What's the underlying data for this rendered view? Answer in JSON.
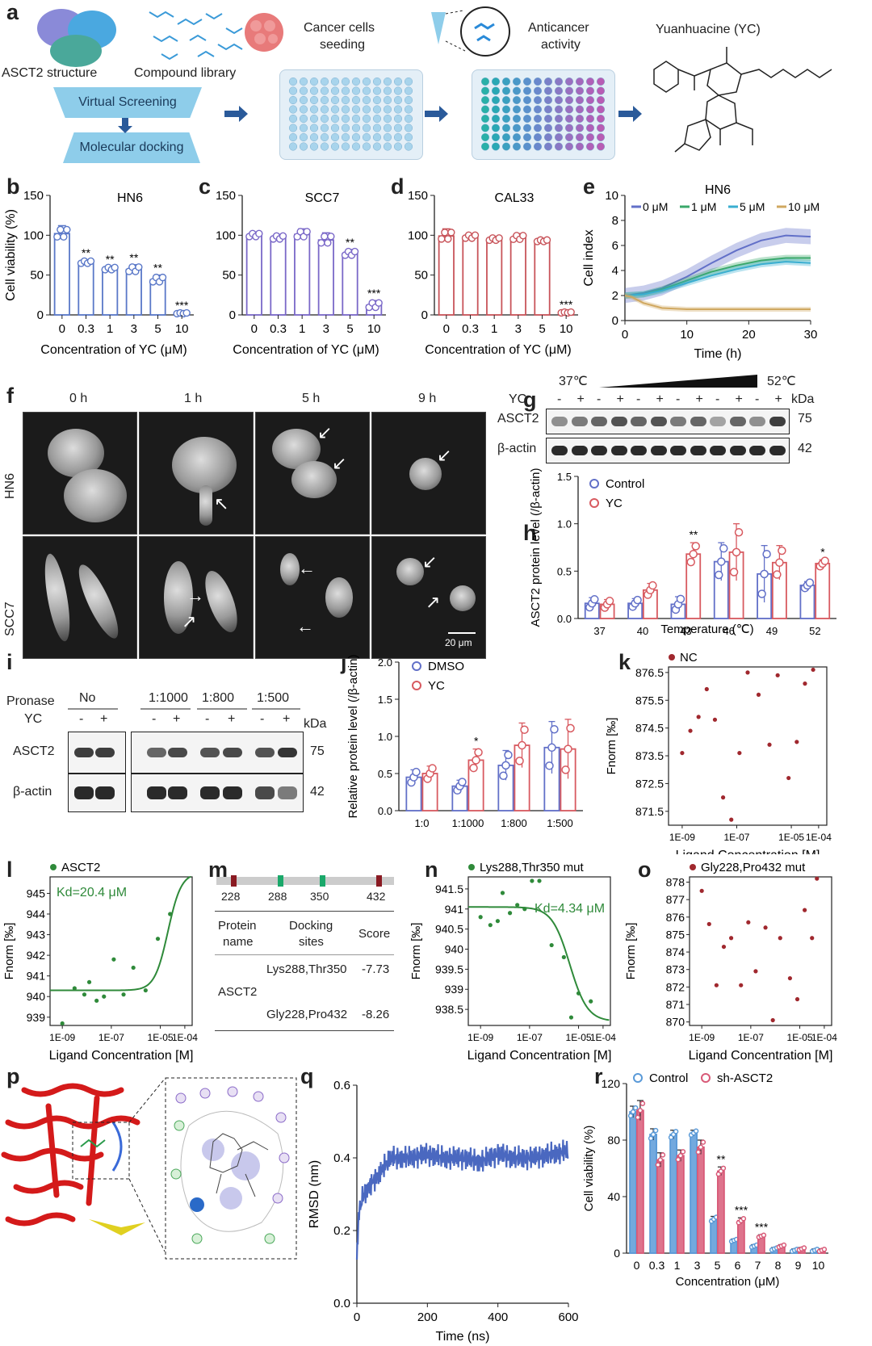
{
  "panels": {
    "a": "a",
    "b": "b",
    "c": "c",
    "d": "d",
    "e": "e",
    "f": "f",
    "g": "g",
    "h": "h",
    "i": "i",
    "j": "j",
    "k": "k",
    "l": "l",
    "m": "m",
    "n": "n",
    "o": "o",
    "p": "p",
    "q": "q",
    "r": "r"
  },
  "panel_a": {
    "asct2_structure": "ASCT2 structure",
    "compound_library": "Compound library",
    "virtual_screening": "Virtual Screening",
    "molecular_docking": "Molecular docking",
    "cancer_cells_seeding_1": "Cancer cells",
    "cancer_cells_seeding_2": "seeding",
    "anticancer_1": "Anticancer",
    "anticancer_2": "activity",
    "yc_title": "Yuanhuacine (YC)"
  },
  "panel_f": {
    "times": [
      "0 h",
      "1 h",
      "5 h",
      "9 h"
    ],
    "rows": [
      "HN6",
      "SCC7"
    ],
    "scale": "20 μm"
  },
  "panel_g": {
    "temp_low": "37℃",
    "temp_high": "52℃",
    "yc": "YC",
    "kda": "kDa",
    "asct2": "ASCT2",
    "actin": "β-actin",
    "kda_asct2": "75",
    "kda_actin": "42",
    "signs": [
      "-",
      "+",
      "-",
      "+",
      "-",
      "+",
      "-",
      "+",
      "-",
      "+",
      "-",
      "+"
    ]
  },
  "panel_i": {
    "pronase": "Pronase",
    "yc": "YC",
    "groups": [
      "No",
      "1:1000",
      "1:800",
      "1:500"
    ],
    "signs": [
      "-",
      "+",
      "-",
      "+",
      "-",
      "+",
      "-",
      "+"
    ],
    "asct2": "ASCT2",
    "actin": "β-actin",
    "kda": "kDa",
    "kda_asct2": "75",
    "kda_actin": "42"
  },
  "panel_m": {
    "sites": [
      "228",
      "288",
      "350",
      "432"
    ],
    "h_protein": "Protein",
    "h_name": "name",
    "h_docking": "Docking",
    "h_sites": "sites",
    "h_score": "Score",
    "protein": "ASCT2",
    "row1_sites": "Lys288,Thr350",
    "row1_score": "-7.73",
    "row2_sites": "Gly228,Pro432",
    "row2_score": "-8.26"
  },
  "chart_data": [
    {
      "id": "b",
      "type": "bar",
      "title": "HN6",
      "categories": [
        "0",
        "0.3",
        "1",
        "3",
        "5",
        "10"
      ],
      "values": [
        102,
        66,
        58,
        57,
        44,
        2
      ],
      "errors": [
        10,
        3,
        3,
        6,
        6,
        1
      ],
      "significance": [
        "",
        "**",
        "**",
        "**",
        "**",
        "***"
      ],
      "xlabel": "Concentration of YC (μM)",
      "ylabel": "Cell viability (%)",
      "ylim": [
        0,
        150
      ],
      "yticks": [
        0,
        50,
        100,
        150
      ],
      "color": "#5a78c8"
    },
    {
      "id": "c",
      "type": "bar",
      "title": "SCC7",
      "categories": [
        "0",
        "0.3",
        "1",
        "3",
        "5",
        "10"
      ],
      "values": [
        100,
        97,
        101,
        94,
        77,
        12
      ],
      "errors": [
        4,
        4,
        7,
        9,
        5,
        6
      ],
      "significance": [
        "",
        "",
        "",
        "",
        "**",
        "***"
      ],
      "xlabel": "Concentration of YC (μM)",
      "ylabel": "",
      "ylim": [
        0,
        150
      ],
      "yticks": [
        0,
        50,
        100,
        150
      ],
      "color": "#7a68c8"
    },
    {
      "id": "d",
      "type": "bar",
      "title": "CAL33",
      "categories": [
        "0",
        "0.3",
        "1",
        "3",
        "5",
        "10"
      ],
      "values": [
        99,
        98,
        95,
        97,
        93,
        3
      ],
      "errors": [
        9,
        4,
        3,
        5,
        2,
        1
      ],
      "significance": [
        "",
        "",
        "",
        "",
        "",
        "***"
      ],
      "xlabel": "Concentration of YC (μM)",
      "ylabel": "",
      "ylim": [
        0,
        150
      ],
      "yticks": [
        0,
        50,
        100,
        150
      ],
      "color": "#c8545a"
    },
    {
      "id": "e",
      "type": "line",
      "title": "HN6",
      "xlabel": "Time (h)",
      "ylabel": "Cell index",
      "xlim": [
        0,
        30
      ],
      "ylim": [
        0,
        10
      ],
      "xticks": [
        0,
        10,
        20,
        30
      ],
      "yticks": [
        0,
        2,
        4,
        6,
        8,
        10
      ],
      "series": [
        {
          "name": "0 μM",
          "color": "#6270c8",
          "x": [
            0,
            3,
            6,
            10,
            14,
            18,
            22,
            26,
            30
          ],
          "values": [
            2,
            2.2,
            2.6,
            3.5,
            4.6,
            5.6,
            6.4,
            6.8,
            6.7
          ],
          "band": 0.6
        },
        {
          "name": "1 μM",
          "color": "#3aa86a",
          "x": [
            0,
            3,
            6,
            10,
            14,
            18,
            22,
            26,
            30
          ],
          "values": [
            2,
            2.1,
            2.5,
            3.2,
            3.9,
            4.4,
            4.8,
            5.0,
            5.0
          ],
          "band": 0.25
        },
        {
          "name": "5 μM",
          "color": "#3aaed0",
          "x": [
            0,
            3,
            6,
            10,
            14,
            18,
            22,
            26,
            30
          ],
          "values": [
            2,
            2.1,
            2.4,
            3.0,
            3.6,
            4.1,
            4.5,
            4.7,
            4.6
          ],
          "band": 0.25
        },
        {
          "name": "10 μM",
          "color": "#d0a860",
          "x": [
            0,
            1,
            3,
            6,
            10,
            14,
            18,
            22,
            26,
            30
          ],
          "values": [
            2,
            1.9,
            1.4,
            1.0,
            0.9,
            0.9,
            0.9,
            0.9,
            0.9,
            0.9
          ],
          "band": 0.2
        }
      ]
    },
    {
      "id": "h",
      "type": "bar",
      "xlabel": "Temperature (℃)",
      "ylabel": "ASCT2 protein level (/β-actin)",
      "categories": [
        "37",
        "40",
        "43",
        "46",
        "49",
        "52"
      ],
      "ylim": [
        0,
        1.5
      ],
      "yticks": [
        0.0,
        0.5,
        1.0,
        1.5
      ],
      "series": [
        {
          "name": "Control",
          "color": "#6270c8",
          "values": [
            0.16,
            0.16,
            0.15,
            0.6,
            0.47,
            0.35
          ],
          "errors": [
            0.06,
            0.05,
            0.08,
            0.2,
            0.3,
            0.04
          ]
        },
        {
          "name": "YC",
          "color": "#d85a60",
          "values": [
            0.15,
            0.3,
            0.68,
            0.7,
            0.59,
            0.58
          ],
          "errors": [
            0.05,
            0.07,
            0.12,
            0.3,
            0.18,
            0.04
          ]
        }
      ],
      "significance": [
        "",
        "",
        "**",
        "",
        "",
        "*"
      ]
    },
    {
      "id": "j",
      "type": "bar",
      "xlabel": "",
      "ylabel": "Relative protein level (/β-actin)",
      "categories": [
        "1:0",
        "1:1000",
        "1:800",
        "1:500"
      ],
      "ylim": [
        0,
        2.0
      ],
      "yticks": [
        0.0,
        0.5,
        1.0,
        1.5,
        2.0
      ],
      "series": [
        {
          "name": "DMSO",
          "color": "#6270c8",
          "values": [
            0.45,
            0.33,
            0.61,
            0.85
          ],
          "errors": [
            0.1,
            0.08,
            0.2,
            0.35
          ]
        },
        {
          "name": "YC",
          "color": "#d85a60",
          "values": [
            0.5,
            0.68,
            0.88,
            0.83
          ],
          "errors": [
            0.1,
            0.15,
            0.3,
            0.4
          ]
        }
      ],
      "significance": [
        "",
        "*",
        "",
        ""
      ]
    },
    {
      "id": "k",
      "type": "scatter",
      "legend": "NC",
      "xlabel": "Ligand Concentration [M]",
      "ylabel": "Fnorm [‰]",
      "xlim": [
        -9.5,
        -3.7
      ],
      "ylim": [
        871,
        876.7
      ],
      "yticks": [
        871.5,
        872.5,
        873.5,
        874.5,
        875.5,
        876.5
      ],
      "xticks": [
        "1E-09",
        "1E-07",
        "1E-05",
        "1E-04"
      ],
      "xtick_vals": [
        -9,
        -7,
        -5,
        -4
      ],
      "color": "#a0282e",
      "points": [
        [
          -9,
          873.6
        ],
        [
          -8.7,
          874.4
        ],
        [
          -8.4,
          874.9
        ],
        [
          -8.1,
          875.9
        ],
        [
          -7.8,
          874.8
        ],
        [
          -7.5,
          872
        ],
        [
          -7.2,
          871.2
        ],
        [
          -6.9,
          873.6
        ],
        [
          -6.6,
          876.5
        ],
        [
          -6.2,
          875.7
        ],
        [
          -5.8,
          873.9
        ],
        [
          -5.5,
          876.4
        ],
        [
          -5.1,
          872.7
        ],
        [
          -4.8,
          874
        ],
        [
          -4.5,
          876.1
        ],
        [
          -4.2,
          876.6
        ]
      ]
    },
    {
      "id": "l",
      "type": "scatter",
      "legend": "ASCT2",
      "kd": "Kd=20.4 μM",
      "xlabel": "Ligand Concentration [M]",
      "ylabel": "Fnorm [‰]",
      "xlim": [
        -9.5,
        -3.7
      ],
      "ylim": [
        938.6,
        945.8
      ],
      "yticks": [
        939,
        940,
        941,
        942,
        943,
        944,
        945
      ],
      "xticks": [
        "1E-09",
        "1E-07",
        "1E-05",
        "1E-04"
      ],
      "xtick_vals": [
        -9,
        -7,
        -5,
        -4
      ],
      "color": "#2f8a3a",
      "points": [
        [
          -9,
          938.7
        ],
        [
          -8.5,
          940.4
        ],
        [
          -8.1,
          940.1
        ],
        [
          -7.9,
          940.7
        ],
        [
          -7.6,
          939.8
        ],
        [
          -7.3,
          940
        ],
        [
          -6.9,
          941.8
        ],
        [
          -6.5,
          940.1
        ],
        [
          -6.1,
          941.4
        ],
        [
          -5.6,
          940.3
        ],
        [
          -5.1,
          942.8
        ],
        [
          -4.6,
          944
        ]
      ],
      "fit": {
        "bottom": 940.3,
        "top": 946.0,
        "logkd": -4.69,
        "hill": 1.6
      }
    },
    {
      "id": "n",
      "type": "scatter",
      "legend": "Lys288,Thr350 mut",
      "kd": "Kd=4.34 μM",
      "xlabel": "Ligand Concentration [M]",
      "ylabel": "Fnorm [‰]",
      "xlim": [
        -9.5,
        -3.7
      ],
      "ylim": [
        938.1,
        941.8
      ],
      "yticks": [
        938.5,
        939.0,
        939.5,
        940.0,
        940.5,
        941.0,
        941.5
      ],
      "xticks": [
        "1E-09",
        "1E-07",
        "1E-05",
        "1E-04"
      ],
      "xtick_vals": [
        -9,
        -7,
        -5,
        -4
      ],
      "color": "#2f8a3a",
      "points": [
        [
          -9,
          940.8
        ],
        [
          -8.6,
          940.6
        ],
        [
          -8.3,
          940.7
        ],
        [
          -8.1,
          941.4
        ],
        [
          -7.8,
          940.9
        ],
        [
          -7.5,
          941.1
        ],
        [
          -7.2,
          941.0
        ],
        [
          -6.9,
          941.7
        ],
        [
          -6.6,
          941.7
        ],
        [
          -6.1,
          940.1
        ],
        [
          -5.6,
          939.8
        ],
        [
          -5.3,
          938.3
        ],
        [
          -5.0,
          938.9
        ],
        [
          -4.5,
          938.7
        ]
      ],
      "fit": {
        "bottom": 938.2,
        "top": 941.05,
        "logkd": -5.36,
        "hill": -1.2
      }
    },
    {
      "id": "o",
      "type": "scatter",
      "legend": "Gly228,Pro432 mut",
      "xlabel": "Ligand Concentration [M]",
      "ylabel": "Fnorm [‰]",
      "xlim": [
        -9.5,
        -3.7
      ],
      "ylim": [
        869.8,
        878.3
      ],
      "yticks": [
        870,
        871,
        872,
        873,
        874,
        875,
        876,
        877,
        878
      ],
      "xticks": [
        "1E-09",
        "1E-07",
        "1E-05",
        "1E-04"
      ],
      "xtick_vals": [
        -9,
        -7,
        -5,
        -4
      ],
      "color": "#a0282e",
      "points": [
        [
          -9,
          877.5
        ],
        [
          -8.7,
          875.6
        ],
        [
          -8.4,
          872.1
        ],
        [
          -8.1,
          874.3
        ],
        [
          -7.8,
          874.8
        ],
        [
          -7.4,
          872.1
        ],
        [
          -7.1,
          875.7
        ],
        [
          -6.8,
          872.9
        ],
        [
          -6.4,
          875.4
        ],
        [
          -6.1,
          870.1
        ],
        [
          -5.8,
          874.8
        ],
        [
          -5.4,
          872.5
        ],
        [
          -5.1,
          871.3
        ],
        [
          -4.8,
          876.4
        ],
        [
          -4.5,
          874.8
        ],
        [
          -4.3,
          878.2
        ]
      ]
    },
    {
      "id": "q",
      "type": "line",
      "xlabel": "Time (ns)",
      "ylabel": "RMSD (nm)",
      "xlim": [
        0,
        600
      ],
      "ylim": [
        0,
        0.6
      ],
      "xticks": [
        0,
        200,
        400,
        600
      ],
      "yticks": [
        0.0,
        0.2,
        0.4,
        0.6
      ],
      "color": "#4a68c0",
      "x": [
        0,
        5,
        10,
        20,
        40,
        60,
        80,
        100,
        150,
        200,
        250,
        300,
        350,
        400,
        450,
        500,
        550,
        600
      ],
      "values": [
        0.12,
        0.22,
        0.27,
        0.3,
        0.33,
        0.35,
        0.38,
        0.4,
        0.4,
        0.41,
        0.4,
        0.4,
        0.39,
        0.41,
        0.4,
        0.4,
        0.41,
        0.42
      ]
    },
    {
      "id": "r",
      "type": "bar",
      "xlabel": "Concentration (μM)",
      "ylabel": "Cell viability (%)",
      "categories": [
        "0",
        "0.3",
        "1",
        "3",
        "5",
        "6",
        "7",
        "8",
        "9",
        "10"
      ],
      "ylim": [
        0,
        120
      ],
      "yticks": [
        0,
        40,
        80,
        120
      ],
      "series": [
        {
          "name": "Control",
          "color": "#5a9ad8",
          "values": [
            100,
            84,
            84,
            85,
            24,
            9,
            5,
            3,
            2,
            2
          ],
          "errors": [
            4,
            4,
            3,
            2,
            2,
            1,
            1,
            1,
            1,
            1
          ]
        },
        {
          "name": "sh-ASCT2",
          "color": "#d85a78",
          "values": [
            101,
            66,
            69,
            75,
            58,
            23,
            12,
            5,
            3,
            2
          ],
          "errors": [
            7,
            5,
            4,
            5,
            3,
            2,
            1,
            1,
            1,
            1
          ]
        }
      ],
      "significance": [
        "",
        "",
        "",
        "",
        "**",
        "***",
        "***",
        "",
        "",
        ""
      ]
    }
  ]
}
